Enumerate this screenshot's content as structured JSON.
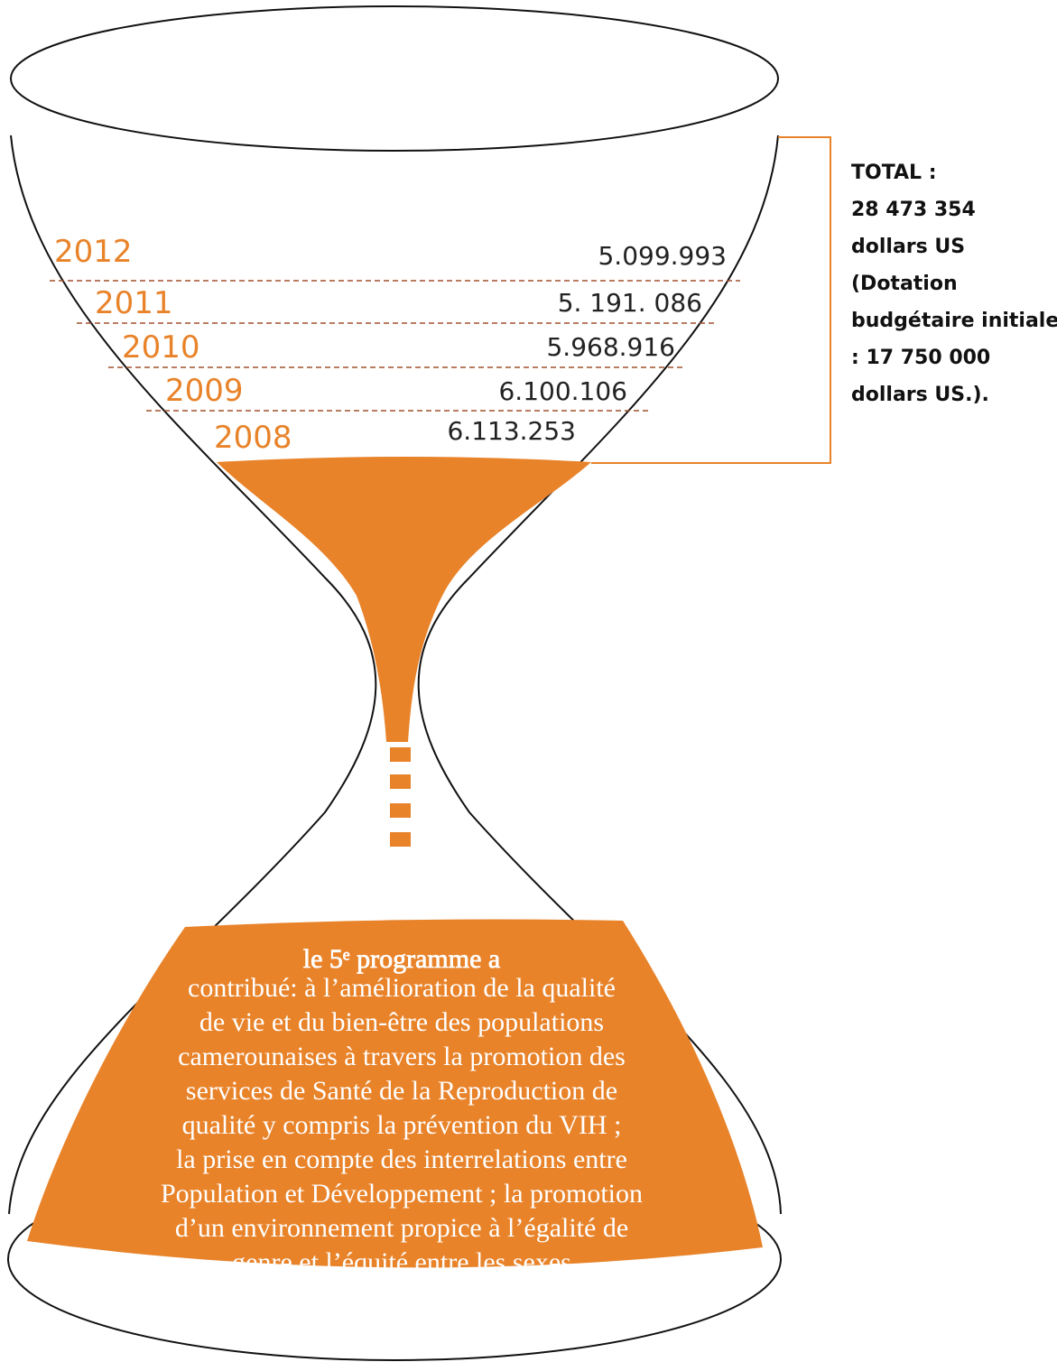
{
  "budget": {
    "rows": [
      {
        "year": "2012",
        "amount": "5.099.993"
      },
      {
        "year": "2011",
        "amount": "5. 191. 086"
      },
      {
        "year": "2010",
        "amount": "5.968.916"
      },
      {
        "year": "2009",
        "amount": "6.100.106"
      },
      {
        "year": "2008",
        "amount": "6.113.253"
      }
    ],
    "total": [
      "TOTAL :",
      "28 473 354",
      "dollars US",
      "(Dotation",
      "budgétaire initiale",
      ": 17 750 000",
      "dollars US.)."
    ]
  },
  "programme": {
    "lines": [
      "le 5ᵉ programme a",
      "contribué:  à l’amélioration de la qualité",
      "de vie et du bien-être des populations",
      "camerounaises à travers la promotion des",
      "services de Santé de la Reproduction de",
      "qualité y compris la prévention du VIH ;",
      "la prise en compte des interrelations entre",
      "Population et Développement ;  la promotion",
      "d’un environnement propice à l’égalité de",
      "genre et l’équité entre les sexes"
    ]
  }
}
